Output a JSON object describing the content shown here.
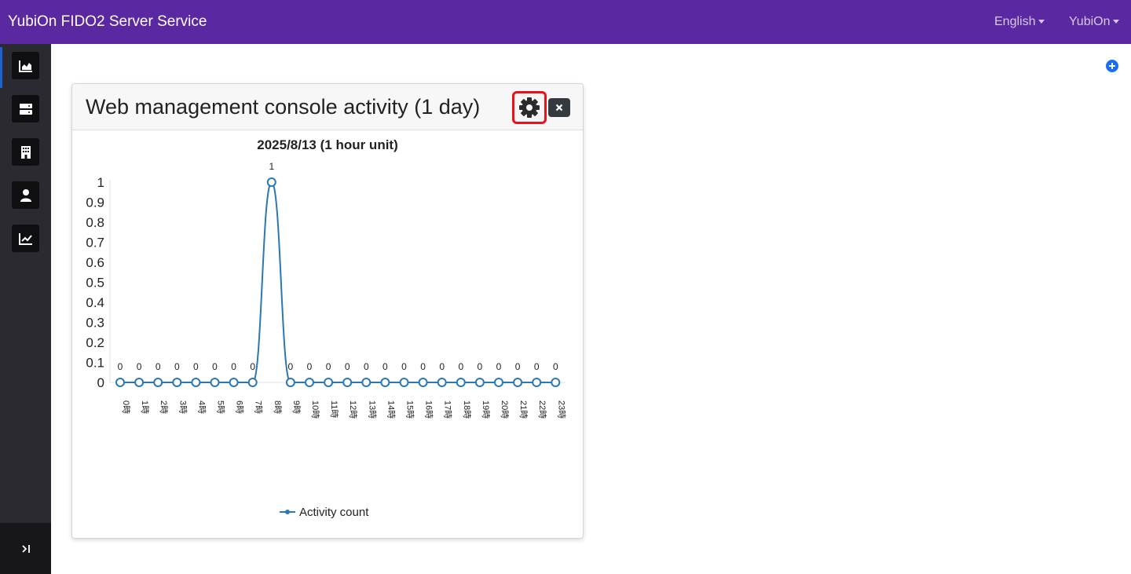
{
  "app": {
    "title": "YubiOn FIDO2 Server Service"
  },
  "topnav": {
    "language": "English",
    "user": "YubiOn"
  },
  "sidebar": {
    "items": [
      {
        "icon": "area-chart-icon",
        "active": true
      },
      {
        "icon": "server-icon"
      },
      {
        "icon": "building-icon"
      },
      {
        "icon": "user-icon"
      },
      {
        "icon": "line-chart-icon"
      }
    ],
    "collapse_icon": "collapse-icon"
  },
  "colors": {
    "header": "#5a28a0",
    "sidebar": "#2b2a30",
    "series": "#2a78b4",
    "highlight": "#e8121a"
  },
  "card": {
    "title": "Web management console activity (1 day)",
    "settings_icon": "gear-icon",
    "close_icon": "close-icon"
  },
  "chart_data": {
    "type": "line",
    "title": "2025/8/13 (1 hour unit)",
    "categories": [
      "0時",
      "1時",
      "2時",
      "3時",
      "4時",
      "5時",
      "6時",
      "7時",
      "8時",
      "9時",
      "10時",
      "11時",
      "12時",
      "13時",
      "14時",
      "15時",
      "16時",
      "17時",
      "18時",
      "19時",
      "20時",
      "21時",
      "22時",
      "23時"
    ],
    "series": [
      {
        "name": "Activity count",
        "values": [
          0,
          0,
          0,
          0,
          0,
          0,
          0,
          0,
          1,
          0,
          0,
          0,
          0,
          0,
          0,
          0,
          0,
          0,
          0,
          0,
          0,
          0,
          0,
          0
        ]
      }
    ],
    "yticks": [
      "1",
      "0.9",
      "0.8",
      "0.7",
      "0.6",
      "0.5",
      "0.4",
      "0.3",
      "0.2",
      "0.1",
      "0"
    ],
    "ylim": [
      0,
      1
    ],
    "data_labels": true,
    "legend": "bottom",
    "smooth": true
  }
}
